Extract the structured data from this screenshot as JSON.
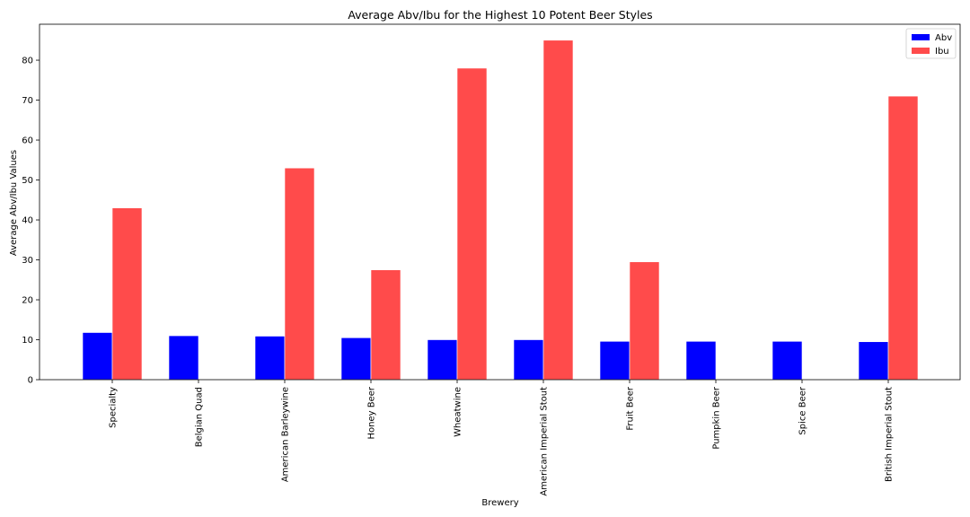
{
  "chart_data": {
    "type": "bar",
    "title": "Average Abv/Ibu for the Highest 10 Potent Beer Styles",
    "xlabel": "Brewery",
    "ylabel": "Average Abv/Ibu Values",
    "ylim": [
      0,
      89
    ],
    "yticks": [
      0,
      10,
      20,
      30,
      40,
      50,
      60,
      70,
      80
    ],
    "categories": [
      "Specialty",
      "Belgian Quad",
      "American Barleywine",
      "Honey Beer",
      "Wheatwine",
      "American Imperial Stout",
      "Fruit Beer",
      "Pumpkin Beer",
      "Spice Beer",
      "British Imperial Stout"
    ],
    "series": [
      {
        "name": "Abv",
        "color": "#0000ff",
        "values": [
          11.8,
          11.0,
          10.9,
          10.5,
          10.0,
          10.0,
          9.6,
          9.6,
          9.6,
          9.5
        ]
      },
      {
        "name": "Ibu",
        "color": "#ff4b4b",
        "values": [
          43.0,
          0,
          53.0,
          27.5,
          78.0,
          85.0,
          29.5,
          0,
          0,
          71.0
        ]
      }
    ],
    "legend_position": "top-right",
    "grid": false
  }
}
